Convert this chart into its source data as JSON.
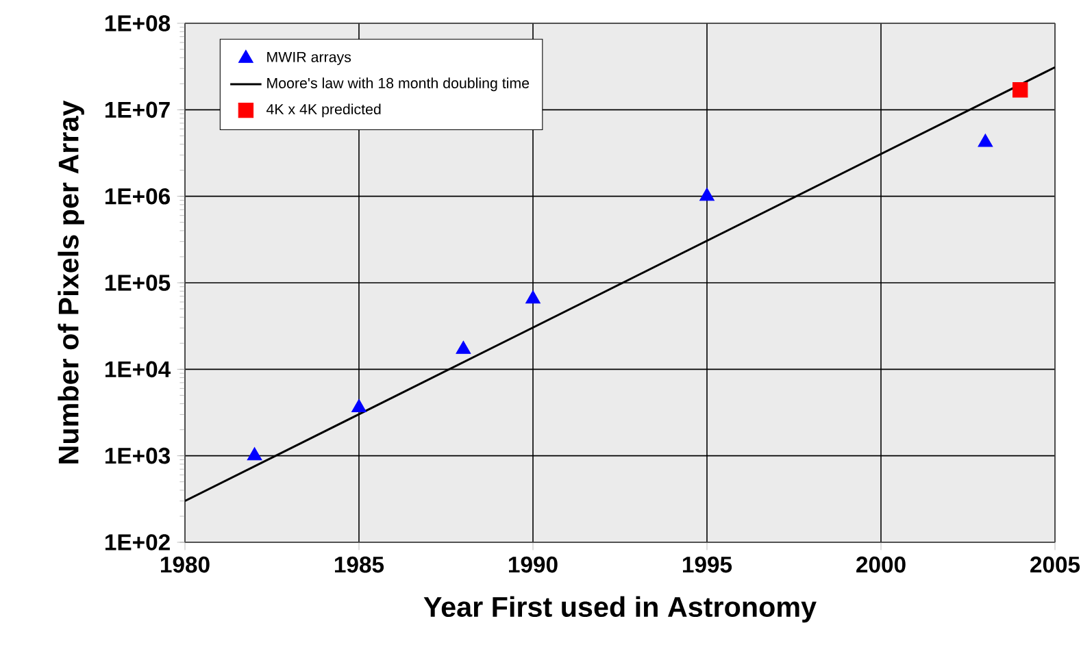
{
  "chart_data": {
    "type": "scatter",
    "xlabel": "Year First used in Astronomy",
    "ylabel": "Number of Pixels per Array",
    "xlim": [
      1980,
      2005
    ],
    "xticks": [
      1980,
      1985,
      1990,
      1995,
      2000,
      2005
    ],
    "ylim": [
      100,
      100000000
    ],
    "log": "y",
    "yticks": [
      {
        "value": 100,
        "label": "1E+02"
      },
      {
        "value": 1000,
        "label": "1E+03"
      },
      {
        "value": 10000,
        "label": "1E+04"
      },
      {
        "value": 100000,
        "label": "1E+05"
      },
      {
        "value": 1000000,
        "label": "1E+06"
      },
      {
        "value": 10000000,
        "label": "1E+07"
      },
      {
        "value": 100000000,
        "label": "1E+08"
      }
    ],
    "grid": true,
    "legend": "top left",
    "series": [
      {
        "name": "MWIR arrays",
        "marker": "triangle",
        "color": "#0000ff",
        "x": [
          1982,
          1985,
          1988,
          1990,
          1995,
          2003
        ],
        "values": [
          1000,
          3600,
          17000,
          65000,
          1000000,
          4200000
        ]
      },
      {
        "name": "Moore's law with 18 month doubling time",
        "type": "line",
        "marker": "none",
        "color": "#000000",
        "x": [
          1980,
          2005
        ],
        "values": [
          300,
          31000000
        ]
      },
      {
        "name": "4K x 4K predicted",
        "marker": "square",
        "color": "#ff0000",
        "x": [
          2004
        ],
        "values": [
          17000000
        ]
      }
    ]
  }
}
